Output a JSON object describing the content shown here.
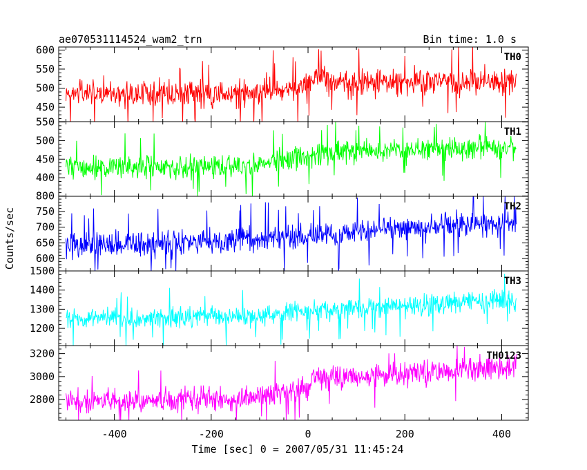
{
  "header": {
    "title_left": "ae070531114524_wam2_trn",
    "title_right": "Bin time: 1.0 s"
  },
  "axes": {
    "xlabel": "Time [sec] 0 = 2007/05/31 11:45:24",
    "ylabel": "Counts/sec"
  },
  "chart_data": {
    "type": "line",
    "title": "ae070531114524_wam2_trn",
    "subtitle": "Bin time: 1.0 s",
    "xlabel": "Time [sec] 0 = 2007/05/31 11:45:24",
    "ylabel": "Counts/sec",
    "xlim": [
      -515,
      455
    ],
    "x_ticks": [
      -400,
      -200,
      0,
      200,
      400
    ],
    "x_data_range": [
      -500,
      430
    ],
    "bin_time_s": 1.0,
    "grid": false,
    "legend": "none",
    "panels": [
      {
        "name": "TH0",
        "color": "#ff0000",
        "ylim": [
          412,
          608
        ],
        "y_ticks": [
          450,
          500,
          550,
          600
        ],
        "baseline": [
          [
            -500,
            487
          ],
          [
            -150,
            487
          ],
          [
            -20,
            500
          ],
          [
            10,
            510
          ],
          [
            20,
            530
          ],
          [
            60,
            512
          ],
          [
            430,
            520
          ]
        ],
        "noise_amplitude": 35,
        "spike_min": 405,
        "spike_max": 610
      },
      {
        "name": "TH1",
        "color": "#00ff00",
        "ylim": [
          350,
          551
        ],
        "y_ticks": [
          400,
          450,
          500,
          550
        ],
        "baseline": [
          [
            -500,
            430
          ],
          [
            -150,
            430
          ],
          [
            0,
            458
          ],
          [
            60,
            470
          ],
          [
            430,
            480
          ]
        ],
        "noise_amplitude": 30,
        "spike_min": 350,
        "spike_max": 550
      },
      {
        "name": "TH2",
        "color": "#0000ff",
        "ylim": [
          560,
          799
        ],
        "y_ticks": [
          600,
          650,
          700,
          750,
          800
        ],
        "baseline": [
          [
            -500,
            643
          ],
          [
            -200,
            646
          ],
          [
            0,
            672
          ],
          [
            200,
            700
          ],
          [
            430,
            713
          ]
        ],
        "noise_amplitude": 40,
        "spike_min": 560,
        "spike_max": 800
      },
      {
        "name": "TH3",
        "color": "#00ffff",
        "ylim": [
          1110,
          1500
        ],
        "y_ticks": [
          1200,
          1300,
          1400,
          1500
        ],
        "baseline": [
          [
            -500,
            1250
          ],
          [
            -100,
            1265
          ],
          [
            0,
            1295
          ],
          [
            200,
            1320
          ],
          [
            430,
            1345
          ]
        ],
        "noise_amplitude": 55,
        "spike_min": 1110,
        "spike_max": 1500
      },
      {
        "name": "TH0123",
        "color": "#ff00ff",
        "ylim": [
          2620,
          3270
        ],
        "y_ticks": [
          2800,
          3000,
          3200
        ],
        "baseline": [
          [
            -500,
            2790
          ],
          [
            -150,
            2800
          ],
          [
            -10,
            2890
          ],
          [
            0,
            2900
          ],
          [
            10,
            2985
          ],
          [
            60,
            2990
          ],
          [
            430,
            3080
          ]
        ],
        "noise_amplitude": 100,
        "spike_min": 2620,
        "spike_max": 3270
      }
    ]
  }
}
